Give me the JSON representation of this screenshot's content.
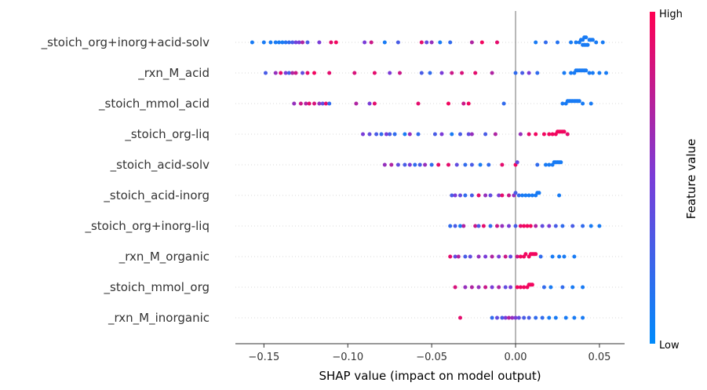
{
  "chart_data": {
    "type": "scatter",
    "subtype": "shap-beeswarm",
    "xlabel": "SHAP value (impact on model output)",
    "xlim": [
      -0.167,
      0.065
    ],
    "x_ticks": [
      -0.15,
      -0.1,
      -0.05,
      0.0,
      0.05
    ],
    "x_tick_labels": [
      "−0.15",
      "−0.10",
      "−0.05",
      "0.00",
      "0.05"
    ],
    "features": [
      "_stoich_org+inorg+acid-solv",
      "_rxn_M_acid",
      "_stoich_mmol_acid",
      "_stoich_org-liq",
      "_stoich_acid-solv",
      "_stoich_acid-inorg",
      "_stoich_org+inorg-liq",
      "_rxn_M_organic",
      "_stoich_mmol_org",
      "_rxn_M_inorganic"
    ],
    "colorbar": {
      "title": "Feature value",
      "high_label": "High",
      "low_label": "Low",
      "high_color": "#ff0052",
      "low_color": "#008bfb"
    },
    "series": [
      {
        "feature": "_stoich_org+inorg+acid-solv",
        "points": [
          [
            -0.157,
            0.1
          ],
          [
            -0.15,
            0.1
          ],
          [
            -0.146,
            0.1
          ],
          [
            -0.143,
            0.1
          ],
          [
            -0.141,
            0.1
          ],
          [
            -0.139,
            0.1
          ],
          [
            -0.137,
            0.15
          ],
          [
            -0.135,
            0.2
          ],
          [
            -0.133,
            0.3
          ],
          [
            -0.131,
            0.45
          ],
          [
            -0.129,
            0.5
          ],
          [
            -0.127,
            0.7
          ],
          [
            -0.124,
            0.3
          ],
          [
            -0.117,
            0.5
          ],
          [
            -0.11,
            0.9
          ],
          [
            -0.107,
            0.95
          ],
          [
            -0.09,
            0.5
          ],
          [
            -0.086,
            0.8
          ],
          [
            -0.078,
            0.1
          ],
          [
            -0.07,
            0.3
          ],
          [
            -0.056,
            0.9
          ],
          [
            -0.053,
            0.4
          ],
          [
            -0.05,
            0.6
          ],
          [
            -0.045,
            0.1
          ],
          [
            -0.039,
            0.2
          ],
          [
            -0.026,
            0.7
          ],
          [
            -0.02,
            0.95
          ],
          [
            -0.011,
            0.9
          ],
          [
            0.012,
            0.1
          ],
          [
            0.018,
            0.2
          ],
          [
            0.025,
            0.15
          ],
          [
            0.033,
            0.1
          ],
          [
            0.036,
            0.1
          ],
          [
            0.038,
            0.1
          ],
          [
            0.039,
            0.1
          ],
          [
            0.04,
            0.1
          ],
          [
            0.04,
            0.1
          ],
          [
            0.041,
            0.1
          ],
          [
            0.041,
            0.1
          ],
          [
            0.042,
            0.1
          ],
          [
            0.042,
            0.1
          ],
          [
            0.043,
            0.1
          ],
          [
            0.044,
            0.1
          ],
          [
            0.045,
            0.1
          ],
          [
            0.046,
            0.1
          ],
          [
            0.048,
            0.1
          ],
          [
            0.052,
            0.1
          ]
        ]
      },
      {
        "feature": "_rxn_M_acid",
        "points": [
          [
            -0.149,
            0.3
          ],
          [
            -0.143,
            0.6
          ],
          [
            -0.14,
            0.9
          ],
          [
            -0.137,
            0.5
          ],
          [
            -0.135,
            0.3
          ],
          [
            -0.133,
            0.7
          ],
          [
            -0.131,
            0.8
          ],
          [
            -0.127,
            0.4
          ],
          [
            -0.124,
            0.9
          ],
          [
            -0.12,
            0.95
          ],
          [
            -0.111,
            0.9
          ],
          [
            -0.096,
            0.85
          ],
          [
            -0.084,
            0.9
          ],
          [
            -0.075,
            0.5
          ],
          [
            -0.069,
            0.8
          ],
          [
            -0.056,
            0.3
          ],
          [
            -0.051,
            0.2
          ],
          [
            -0.044,
            0.5
          ],
          [
            -0.038,
            0.8
          ],
          [
            -0.032,
            0.85
          ],
          [
            -0.024,
            0.9
          ],
          [
            -0.014,
            0.7
          ],
          [
            0.0,
            0.2
          ],
          [
            0.004,
            0.3
          ],
          [
            0.008,
            0.5
          ],
          [
            0.013,
            0.2
          ],
          [
            0.029,
            0.1
          ],
          [
            0.033,
            0.1
          ],
          [
            0.035,
            0.1
          ],
          [
            0.036,
            0.1
          ],
          [
            0.037,
            0.1
          ],
          [
            0.038,
            0.1
          ],
          [
            0.039,
            0.1
          ],
          [
            0.04,
            0.1
          ],
          [
            0.041,
            0.1
          ],
          [
            0.042,
            0.1
          ],
          [
            0.044,
            0.1
          ],
          [
            0.046,
            0.1
          ],
          [
            0.05,
            0.1
          ],
          [
            0.054,
            0.1
          ]
        ]
      },
      {
        "feature": "_stoich_mmol_acid",
        "points": [
          [
            -0.132,
            0.6
          ],
          [
            -0.128,
            0.8
          ],
          [
            -0.125,
            0.7
          ],
          [
            -0.123,
            0.9
          ],
          [
            -0.12,
            0.85
          ],
          [
            -0.117,
            0.6
          ],
          [
            -0.115,
            0.4
          ],
          [
            -0.113,
            0.9
          ],
          [
            -0.111,
            0.2
          ],
          [
            -0.095,
            0.7
          ],
          [
            -0.087,
            0.5
          ],
          [
            -0.084,
            0.9
          ],
          [
            -0.058,
            0.9
          ],
          [
            -0.04,
            0.95
          ],
          [
            -0.031,
            0.8
          ],
          [
            -0.028,
            0.95
          ],
          [
            -0.007,
            0.2
          ],
          [
            0.028,
            0.1
          ],
          [
            0.03,
            0.1
          ],
          [
            0.031,
            0.1
          ],
          [
            0.032,
            0.1
          ],
          [
            0.033,
            0.1
          ],
          [
            0.034,
            0.1
          ],
          [
            0.035,
            0.1
          ],
          [
            0.036,
            0.1
          ],
          [
            0.037,
            0.1
          ],
          [
            0.038,
            0.1
          ],
          [
            0.04,
            0.1
          ],
          [
            0.045,
            0.1
          ]
        ]
      },
      {
        "feature": "_stoich_org-liq",
        "points": [
          [
            -0.091,
            0.5
          ],
          [
            -0.087,
            0.4
          ],
          [
            -0.083,
            0.3
          ],
          [
            -0.08,
            0.2
          ],
          [
            -0.077,
            0.5
          ],
          [
            -0.075,
            0.3
          ],
          [
            -0.072,
            0.2
          ],
          [
            -0.066,
            0.1
          ],
          [
            -0.063,
            0.6
          ],
          [
            -0.058,
            0.2
          ],
          [
            -0.048,
            0.3
          ],
          [
            -0.044,
            0.5
          ],
          [
            -0.038,
            0.1
          ],
          [
            -0.033,
            0.3
          ],
          [
            -0.028,
            0.4
          ],
          [
            -0.026,
            0.6
          ],
          [
            -0.018,
            0.3
          ],
          [
            -0.012,
            0.7
          ],
          [
            0.003,
            0.6
          ],
          [
            0.008,
            0.9
          ],
          [
            0.012,
            0.95
          ],
          [
            0.017,
            0.95
          ],
          [
            0.02,
            0.95
          ],
          [
            0.022,
            0.95
          ],
          [
            0.024,
            0.95
          ],
          [
            0.025,
            0.95
          ],
          [
            0.026,
            0.95
          ],
          [
            0.027,
            0.95
          ],
          [
            0.028,
            0.95
          ],
          [
            0.029,
            0.95
          ],
          [
            0.031,
            0.9
          ]
        ]
      },
      {
        "feature": "_stoich_acid-solv",
        "points": [
          [
            -0.078,
            0.6
          ],
          [
            -0.074,
            0.7
          ],
          [
            -0.07,
            0.4
          ],
          [
            -0.066,
            0.3
          ],
          [
            -0.063,
            0.5
          ],
          [
            -0.06,
            0.2
          ],
          [
            -0.057,
            0.3
          ],
          [
            -0.054,
            0.6
          ],
          [
            -0.05,
            0.2
          ],
          [
            -0.046,
            0.9
          ],
          [
            -0.04,
            0.9
          ],
          [
            -0.035,
            0.4
          ],
          [
            -0.03,
            0.2
          ],
          [
            -0.026,
            0.3
          ],
          [
            -0.021,
            0.1
          ],
          [
            -0.016,
            0.2
          ],
          [
            -0.008,
            0.9
          ],
          [
            0.0,
            0.95
          ],
          [
            0.001,
            0.4
          ],
          [
            0.013,
            0.2
          ],
          [
            0.018,
            0.1
          ],
          [
            0.02,
            0.1
          ],
          [
            0.022,
            0.1
          ],
          [
            0.023,
            0.1
          ],
          [
            0.024,
            0.1
          ],
          [
            0.025,
            0.1
          ],
          [
            0.026,
            0.1
          ],
          [
            0.027,
            0.1
          ]
        ]
      },
      {
        "feature": "_stoich_acid-inorg",
        "points": [
          [
            -0.038,
            0.3
          ],
          [
            -0.036,
            0.5
          ],
          [
            -0.033,
            0.4
          ],
          [
            -0.03,
            0.2
          ],
          [
            -0.026,
            0.3
          ],
          [
            -0.022,
            0.9
          ],
          [
            -0.018,
            0.6
          ],
          [
            -0.015,
            0.4
          ],
          [
            -0.01,
            0.5
          ],
          [
            -0.008,
            0.9
          ],
          [
            -0.004,
            0.8
          ],
          [
            -0.001,
            0.6
          ],
          [
            0.0,
            0.3
          ],
          [
            0.002,
            0.2
          ],
          [
            0.004,
            0.1
          ],
          [
            0.006,
            0.1
          ],
          [
            0.008,
            0.1
          ],
          [
            0.01,
            0.1
          ],
          [
            0.012,
            0.1
          ],
          [
            0.013,
            0.1
          ],
          [
            0.014,
            0.1
          ],
          [
            0.026,
            0.1
          ]
        ]
      },
      {
        "feature": "_stoich_org+inorg-liq",
        "points": [
          [
            -0.039,
            0.2
          ],
          [
            -0.036,
            0.3
          ],
          [
            -0.033,
            0.1
          ],
          [
            -0.031,
            0.7
          ],
          [
            -0.024,
            0.8
          ],
          [
            -0.022,
            0.3
          ],
          [
            -0.019,
            0.9
          ],
          [
            -0.015,
            0.2
          ],
          [
            -0.011,
            0.8
          ],
          [
            -0.008,
            0.6
          ],
          [
            -0.004,
            0.5
          ],
          [
            0.0,
            0.3
          ],
          [
            0.003,
            0.9
          ],
          [
            0.005,
            0.95
          ],
          [
            0.007,
            0.95
          ],
          [
            0.009,
            0.95
          ],
          [
            0.012,
            0.7
          ],
          [
            0.016,
            0.4
          ],
          [
            0.02,
            0.5
          ],
          [
            0.024,
            0.3
          ],
          [
            0.028,
            0.2
          ],
          [
            0.034,
            0.3
          ],
          [
            0.04,
            0.2
          ],
          [
            0.045,
            0.1
          ],
          [
            0.05,
            0.1
          ]
        ]
      },
      {
        "feature": "_rxn_M_organic",
        "points": [
          [
            -0.039,
            0.9
          ],
          [
            -0.036,
            0.4
          ],
          [
            -0.034,
            0.7
          ],
          [
            -0.03,
            0.3
          ],
          [
            -0.027,
            0.4
          ],
          [
            -0.022,
            0.6
          ],
          [
            -0.018,
            0.5
          ],
          [
            -0.014,
            0.7
          ],
          [
            -0.01,
            0.5
          ],
          [
            -0.006,
            0.8
          ],
          [
            -0.003,
            0.4
          ],
          [
            0.001,
            0.8
          ],
          [
            0.003,
            0.95
          ],
          [
            0.005,
            0.95
          ],
          [
            0.006,
            0.95
          ],
          [
            0.008,
            0.95
          ],
          [
            0.009,
            0.95
          ],
          [
            0.01,
            0.95
          ],
          [
            0.011,
            0.95
          ],
          [
            0.012,
            0.95
          ],
          [
            0.015,
            0.2
          ],
          [
            0.022,
            0.1
          ],
          [
            0.026,
            0.1
          ],
          [
            0.029,
            0.1
          ],
          [
            0.035,
            0.1
          ]
        ]
      },
      {
        "feature": "_stoich_mmol_org",
        "points": [
          [
            -0.036,
            0.85
          ],
          [
            -0.03,
            0.6
          ],
          [
            -0.026,
            0.7
          ],
          [
            -0.022,
            0.6
          ],
          [
            -0.018,
            0.8
          ],
          [
            -0.014,
            0.5
          ],
          [
            -0.01,
            0.7
          ],
          [
            -0.006,
            0.4
          ],
          [
            -0.003,
            0.5
          ],
          [
            0.001,
            0.95
          ],
          [
            0.003,
            0.95
          ],
          [
            0.005,
            0.95
          ],
          [
            0.007,
            0.95
          ],
          [
            0.008,
            0.95
          ],
          [
            0.009,
            0.95
          ],
          [
            0.01,
            0.95
          ],
          [
            0.017,
            0.2
          ],
          [
            0.021,
            0.1
          ],
          [
            0.028,
            0.2
          ],
          [
            0.034,
            0.1
          ],
          [
            0.04,
            0.1
          ]
        ]
      },
      {
        "feature": "_rxn_M_inorganic",
        "points": [
          [
            -0.033,
            0.9
          ],
          [
            -0.014,
            0.2
          ],
          [
            -0.011,
            0.4
          ],
          [
            -0.008,
            0.3
          ],
          [
            -0.006,
            0.5
          ],
          [
            -0.004,
            0.7
          ],
          [
            -0.002,
            0.6
          ],
          [
            0.0,
            0.5
          ],
          [
            0.002,
            0.4
          ],
          [
            0.005,
            0.3
          ],
          [
            0.008,
            0.3
          ],
          [
            0.012,
            0.2
          ],
          [
            0.016,
            0.2
          ],
          [
            0.02,
            0.1
          ],
          [
            0.024,
            0.1
          ],
          [
            0.03,
            0.1
          ],
          [
            0.035,
            0.1
          ],
          [
            0.04,
            0.1
          ]
        ]
      }
    ]
  }
}
